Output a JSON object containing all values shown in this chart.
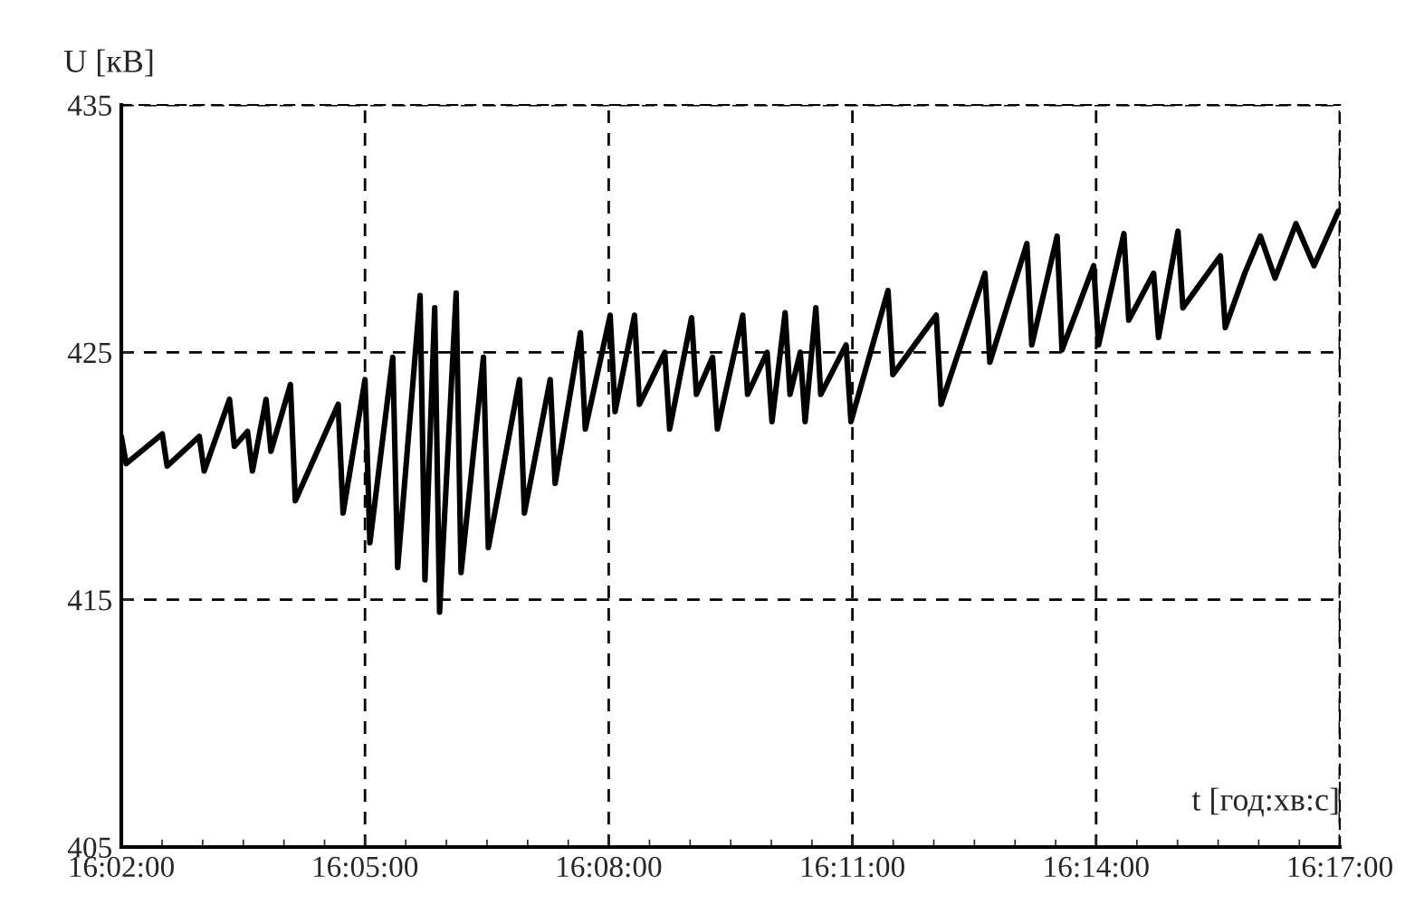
{
  "chart_data": {
    "type": "line",
    "xlabel": "t [год:хв:с]",
    "ylabel": "U [кВ]",
    "x": [
      16.0333,
      16.0343,
      16.0417,
      16.0427,
      16.0493,
      16.0503,
      16.0555,
      16.0565,
      16.0592,
      16.0602,
      16.063,
      16.064,
      16.068,
      16.069,
      16.0778,
      16.0788,
      16.0833,
      16.0843,
      16.089,
      16.09,
      16.0946,
      16.0956,
      16.0976,
      16.0986,
      16.102,
      16.103,
      16.1076,
      16.1086,
      16.115,
      16.116,
      16.1213,
      16.1223,
      16.1275,
      16.1285,
      16.1336,
      16.1346,
      16.1386,
      16.1396,
      16.1448,
      16.1458,
      16.1503,
      16.1513,
      16.1546,
      16.1556,
      16.1608,
      16.1618,
      16.1658,
      16.1668,
      16.1695,
      16.1705,
      16.1726,
      16.1736,
      16.1758,
      16.1768,
      16.182,
      16.183,
      16.1906,
      16.1916,
      16.2005,
      16.2015,
      16.2105,
      16.2115,
      16.2191,
      16.2201,
      16.2253,
      16.2263,
      16.2328,
      16.2338,
      16.239,
      16.24,
      16.2451,
      16.2461,
      16.2501,
      16.2511,
      16.2588,
      16.2598,
      16.2638,
      16.267,
      16.27,
      16.2743,
      16.278,
      16.283
    ],
    "series": [
      {
        "color": "#000000",
        "values": [
          421.6,
          420.5,
          421.7,
          420.4,
          421.6,
          420.2,
          423.1,
          421.2,
          421.8,
          420.2,
          423.1,
          421.0,
          423.7,
          419.0,
          422.9,
          418.5,
          423.9,
          417.3,
          424.8,
          416.3,
          427.3,
          415.8,
          426.8,
          414.5,
          427.4,
          416.1,
          424.8,
          417.1,
          423.9,
          418.5,
          423.9,
          419.7,
          425.8,
          421.9,
          426.5,
          422.6,
          426.5,
          422.9,
          425.0,
          421.9,
          426.4,
          423.3,
          424.8,
          421.9,
          426.5,
          423.3,
          425.0,
          422.2,
          426.6,
          423.3,
          425.0,
          422.2,
          426.8,
          423.3,
          425.3,
          422.2,
          427.5,
          424.1,
          426.5,
          422.9,
          428.2,
          424.6,
          429.4,
          425.3,
          429.7,
          425.1,
          428.5,
          425.3,
          429.8,
          426.3,
          428.2,
          425.6,
          429.9,
          426.8,
          428.9,
          426.0,
          428.2,
          429.7,
          428.0,
          430.2,
          428.5,
          430.7
        ]
      }
    ],
    "xlim": [
      16.0333,
      16.2833
    ],
    "xticks": [
      {
        "value": 16.0333,
        "label": "16:02:00"
      },
      {
        "value": 16.0833,
        "label": "16:05:00"
      },
      {
        "value": 16.1333,
        "label": "16:08:00"
      },
      {
        "value": 16.1833,
        "label": "16:11:00"
      },
      {
        "value": 16.2333,
        "label": "16:14:00"
      },
      {
        "value": 16.2833,
        "label": "16:17:00"
      }
    ],
    "ylim": [
      405,
      435
    ],
    "yticks": [
      405,
      415,
      425,
      435
    ],
    "grid": true,
    "line_style": "solid",
    "marker": "none"
  }
}
